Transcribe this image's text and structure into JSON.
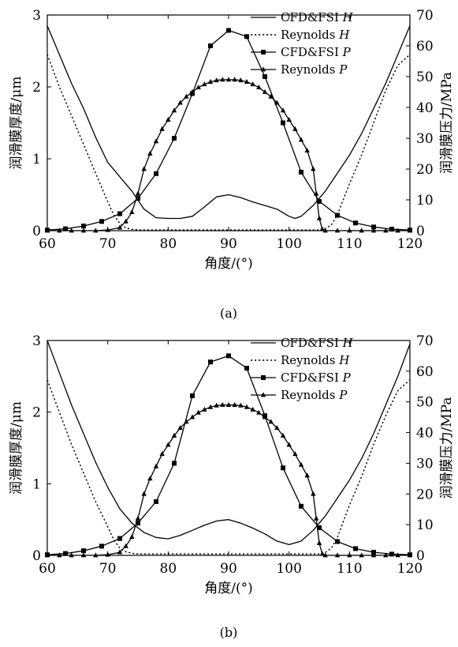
{
  "chart_data": [
    {
      "panel_label": "(a)",
      "type": "line",
      "xlabel": "角度/(°)",
      "ylabel_left": "润滑膜厚度/μm",
      "ylabel_right": "润滑膜压力/MPa",
      "xlim": [
        60,
        120
      ],
      "ylim_left": [
        0,
        3
      ],
      "ylim_right": [
        0,
        70
      ],
      "xticks": [
        "60",
        "70",
        "80",
        "90",
        "100",
        "110",
        "120"
      ],
      "yticks_left": [
        "0",
        "1",
        "2",
        "3"
      ],
      "yticks_right": [
        "0",
        "10",
        "20",
        "30",
        "40",
        "50",
        "60",
        "70"
      ],
      "legend_position": "top-right",
      "series": [
        {
          "name": "CFD&FSI H",
          "axis": "left",
          "style": "solid",
          "x": [
            60,
            62,
            64,
            66,
            68,
            70,
            72,
            74,
            76,
            78,
            80,
            82,
            84,
            86,
            88,
            90,
            92,
            94,
            96,
            98,
            100,
            101,
            102,
            104,
            106,
            108,
            110,
            112,
            114,
            116,
            118,
            120
          ],
          "y": [
            2.85,
            2.45,
            2.05,
            1.7,
            1.3,
            0.95,
            0.75,
            0.55,
            0.3,
            0.18,
            0.17,
            0.17,
            0.2,
            0.33,
            0.47,
            0.5,
            0.46,
            0.4,
            0.35,
            0.3,
            0.2,
            0.17,
            0.2,
            0.35,
            0.55,
            0.8,
            1.05,
            1.35,
            1.7,
            2.05,
            2.45,
            2.85
          ]
        },
        {
          "name": "Reynolds H",
          "axis": "left",
          "style": "dotted",
          "x": [
            60,
            62,
            64,
            66,
            68,
            70,
            71,
            72,
            73,
            74,
            75,
            80,
            90,
            100,
            105,
            106,
            107,
            108,
            110,
            112,
            114,
            116,
            118,
            120
          ],
          "y": [
            2.45,
            2.0,
            1.6,
            1.2,
            0.8,
            0.4,
            0.22,
            0.1,
            0.04,
            0.02,
            0.01,
            0.01,
            0.01,
            0.01,
            0.01,
            0.03,
            0.08,
            0.22,
            0.65,
            1.05,
            1.5,
            1.95,
            2.3,
            2.45
          ]
        },
        {
          "name": "CFD&FSI P",
          "axis": "right",
          "style": "solid-square",
          "x": [
            60,
            63,
            66,
            69,
            72,
            75,
            78,
            81,
            84,
            87,
            90,
            93,
            96,
            99,
            102,
            105,
            108,
            111,
            114,
            117,
            120
          ],
          "y": [
            0.2,
            0.6,
            1.5,
            3.0,
            5.5,
            10.5,
            18.5,
            30.0,
            44.5,
            60.0,
            65.0,
            63.0,
            50.0,
            35.0,
            19.0,
            9.5,
            5.0,
            2.5,
            1.2,
            0.5,
            0.2
          ]
        },
        {
          "name": "Reynolds P",
          "axis": "right",
          "style": "solid-triangle",
          "x": [
            60,
            62,
            64,
            66,
            68,
            70,
            72,
            73,
            74,
            75,
            76,
            77,
            78,
            79,
            80,
            81,
            82,
            83,
            84,
            85,
            86,
            87,
            88,
            89,
            90,
            91,
            92,
            93,
            94,
            95,
            96,
            97,
            98,
            99,
            100,
            101,
            102,
            103,
            104,
            104.5,
            105,
            105.5,
            106,
            108,
            110,
            112,
            114,
            116,
            118,
            120
          ],
          "y": [
            0,
            0,
            0,
            0,
            0,
            0.2,
            1.0,
            3.0,
            6.0,
            12.0,
            20.0,
            25.0,
            29.0,
            33.0,
            36.0,
            39.0,
            41.5,
            43.5,
            45.0,
            46.5,
            47.5,
            48.3,
            48.8,
            49.0,
            49.0,
            49.0,
            48.8,
            48.3,
            47.5,
            46.5,
            45.0,
            43.5,
            41.5,
            39.0,
            36.0,
            33.0,
            29.5,
            26.0,
            20.0,
            12.0,
            4.0,
            0.5,
            0,
            0,
            0,
            0,
            0,
            0,
            0,
            0
          ]
        }
      ]
    },
    {
      "panel_label": "(b)",
      "type": "line",
      "xlabel": "角度/(°)",
      "ylabel_left": "润滑膜厚度/μm",
      "ylabel_right": "润滑膜压力/MPa",
      "xlim": [
        60,
        120
      ],
      "ylim_left": [
        0,
        3
      ],
      "ylim_right": [
        0,
        70
      ],
      "xticks": [
        "60",
        "70",
        "80",
        "90",
        "100",
        "110",
        "120"
      ],
      "yticks_left": [
        "0",
        "1",
        "2",
        "3"
      ],
      "yticks_right": [
        "0",
        "10",
        "20",
        "30",
        "40",
        "50",
        "60",
        "70"
      ],
      "legend_position": "top-right",
      "series": [
        {
          "name": "CFD&FSI H",
          "axis": "left",
          "style": "solid",
          "x": [
            60,
            62,
            64,
            66,
            68,
            70,
            72,
            74,
            76,
            78,
            80,
            82,
            84,
            86,
            88,
            90,
            92,
            94,
            96,
            98,
            100,
            102,
            104,
            106,
            108,
            110,
            112,
            114,
            116,
            118,
            120
          ],
          "y": [
            3.0,
            2.55,
            2.1,
            1.7,
            1.3,
            0.95,
            0.65,
            0.45,
            0.32,
            0.25,
            0.23,
            0.28,
            0.35,
            0.42,
            0.48,
            0.5,
            0.45,
            0.38,
            0.3,
            0.2,
            0.15,
            0.2,
            0.35,
            0.55,
            0.8,
            1.05,
            1.35,
            1.7,
            2.1,
            2.5,
            2.95
          ]
        },
        {
          "name": "Reynolds H",
          "axis": "left",
          "style": "dotted",
          "x": [
            60,
            62,
            64,
            66,
            68,
            70,
            71,
            72,
            73,
            74,
            75,
            80,
            90,
            100,
            105,
            106,
            107,
            108,
            110,
            112,
            114,
            116,
            118,
            120
          ],
          "y": [
            2.45,
            2.0,
            1.55,
            1.15,
            0.75,
            0.4,
            0.22,
            0.1,
            0.05,
            0.03,
            0.02,
            0.02,
            0.02,
            0.02,
            0.02,
            0.04,
            0.1,
            0.25,
            0.7,
            1.1,
            1.55,
            1.95,
            2.3,
            2.45
          ]
        },
        {
          "name": "CFD&FSI P",
          "axis": "right",
          "style": "solid-square",
          "x": [
            60,
            63,
            66,
            69,
            72,
            75,
            78,
            81,
            84,
            87,
            90,
            93,
            96,
            99,
            102,
            105,
            108,
            111,
            114,
            117,
            120
          ],
          "y": [
            0.2,
            0.6,
            1.5,
            3.0,
            5.5,
            10.5,
            17.5,
            30.0,
            52.0,
            63.0,
            65.0,
            61.0,
            45.5,
            28.5,
            16.0,
            9.0,
            4.5,
            2.2,
            1.0,
            0.4,
            0.2
          ]
        },
        {
          "name": "Reynolds P",
          "axis": "right",
          "style": "solid-triangle",
          "x": [
            60,
            62,
            64,
            66,
            68,
            70,
            72,
            73,
            74,
            75,
            76,
            77,
            78,
            79,
            80,
            81,
            82,
            83,
            84,
            85,
            86,
            87,
            88,
            89,
            90,
            91,
            92,
            93,
            94,
            95,
            96,
            97,
            98,
            99,
            100,
            101,
            102,
            103,
            104,
            104.5,
            105,
            105.5,
            106,
            108,
            110,
            112,
            114,
            116,
            118,
            120
          ],
          "y": [
            0,
            0,
            0,
            0,
            0,
            0.2,
            1.0,
            3.0,
            6.0,
            12.0,
            20.0,
            25.0,
            29.0,
            33.0,
            36.0,
            39.0,
            41.5,
            43.5,
            45.0,
            46.5,
            47.5,
            48.3,
            48.8,
            49.0,
            49.0,
            49.0,
            48.8,
            48.3,
            47.5,
            46.5,
            45.0,
            43.5,
            41.5,
            39.0,
            36.0,
            33.0,
            29.5,
            26.0,
            20.0,
            12.0,
            4.0,
            0.5,
            0,
            0,
            0,
            0,
            0,
            0,
            0,
            0
          ]
        }
      ]
    }
  ]
}
